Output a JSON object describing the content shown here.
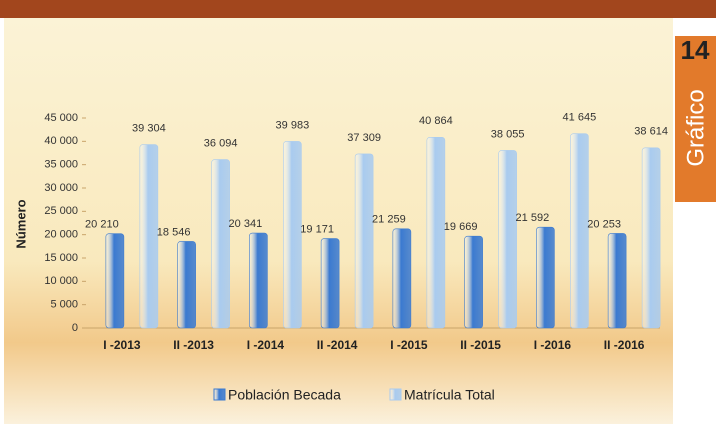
{
  "chart_data": {
    "type": "bar",
    "y_label": "Número",
    "categories": [
      "I -2013",
      "II -2013",
      "I -2014",
      "II -2014",
      "I -2015",
      "II -2015",
      "I -2016",
      "II -2016"
    ],
    "series": [
      {
        "name": "Población Becada",
        "color": "#3b7ad0",
        "values": [
          20210,
          18546,
          20341,
          19171,
          21259,
          19669,
          21592,
          20253
        ],
        "value_labels": [
          "20 210",
          "18 546",
          "20 341",
          "19 171",
          "21 259",
          "19 669",
          "21 592",
          "20 253"
        ]
      },
      {
        "name": "Matrícula Total",
        "color": "#a9cbef",
        "values": [
          39304,
          36094,
          39983,
          37309,
          40864,
          38055,
          41645,
          38614
        ],
        "value_labels": [
          "39 304",
          "36 094",
          "39 983",
          "37 309",
          "40 864",
          "38 055",
          "41 645",
          "38 614"
        ]
      }
    ],
    "ylim": [
      0,
      45000
    ],
    "yticks": [
      0,
      {
        "value": 5000,
        "label": "5 000"
      },
      {
        "value": 10000,
        "label": "10 000"
      },
      {
        "value": 15000,
        "label": "15 000"
      },
      {
        "value": 20000,
        "label": "20 000"
      },
      {
        "value": 25000,
        "label": "25 000"
      },
      {
        "value": 30000,
        "label": "30 000"
      },
      {
        "value": 35000,
        "label": "35 000"
      },
      {
        "value": 40000,
        "label": "40 000"
      },
      {
        "value": 45000,
        "label": "45 000"
      }
    ],
    "grid": false,
    "legend": "bottom"
  },
  "badge": {
    "number": "14",
    "label": "Gráfico"
  }
}
